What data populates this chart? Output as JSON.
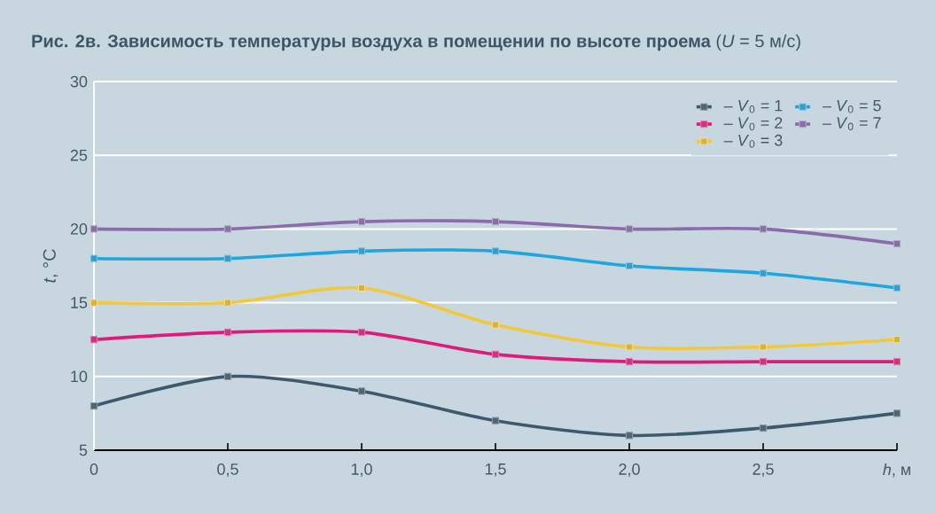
{
  "chart_data": {
    "type": "line",
    "title": "**Рис. 2в. Зависимость температуры воздуха в помещении по высоте проема** (*U* = 5 м/с)",
    "ylabel": "*t*, °C",
    "x": [
      0,
      0.5,
      1.0,
      1.5,
      2.0,
      2.5,
      3.0
    ],
    "xlim": [
      0,
      3
    ],
    "xticks": [
      0,
      {
        "value": 0.5,
        "label": "0,5"
      },
      {
        "value": 1.0,
        "label": "1,0"
      },
      {
        "value": 1.5,
        "label": "1,5"
      },
      {
        "value": 2.0,
        "label": "2,0"
      },
      {
        "value": 2.5,
        "label": "2,5"
      },
      {
        "value": 3.0,
        "label": "*h*, м"
      }
    ],
    "ylim": [
      5,
      30
    ],
    "yticks": [
      5,
      10,
      15,
      20,
      25,
      30
    ],
    "grid": "y",
    "legend": "top right",
    "marker": "square",
    "line_style": "solid",
    "series": [
      {
        "name": "– *V*$_{0}$ = 1",
        "color": "#3d5a6c",
        "values": [
          8,
          10,
          9,
          7,
          6,
          6.5,
          7.5
        ]
      },
      {
        "name": "– *V*$_{0}$ = 2",
        "color": "#e0197d",
        "values": [
          12.5,
          13,
          13,
          11.5,
          11,
          11,
          11
        ]
      },
      {
        "name": "– *V*$_{0}$ = 3",
        "color": "#f2c83a",
        "values": [
          15,
          15,
          16,
          13.5,
          12,
          12,
          12.5
        ]
      },
      {
        "name": "– *V*$_{0}$ = 5",
        "color": "#1fa6e0",
        "values": [
          18,
          18,
          18.5,
          18.5,
          17.5,
          17,
          16
        ]
      },
      {
        "name": "– *V*$_{0}$ = 7",
        "color": "#8b6aae",
        "values": [
          20,
          20,
          20.5,
          20.5,
          20,
          20,
          19
        ]
      }
    ]
  }
}
